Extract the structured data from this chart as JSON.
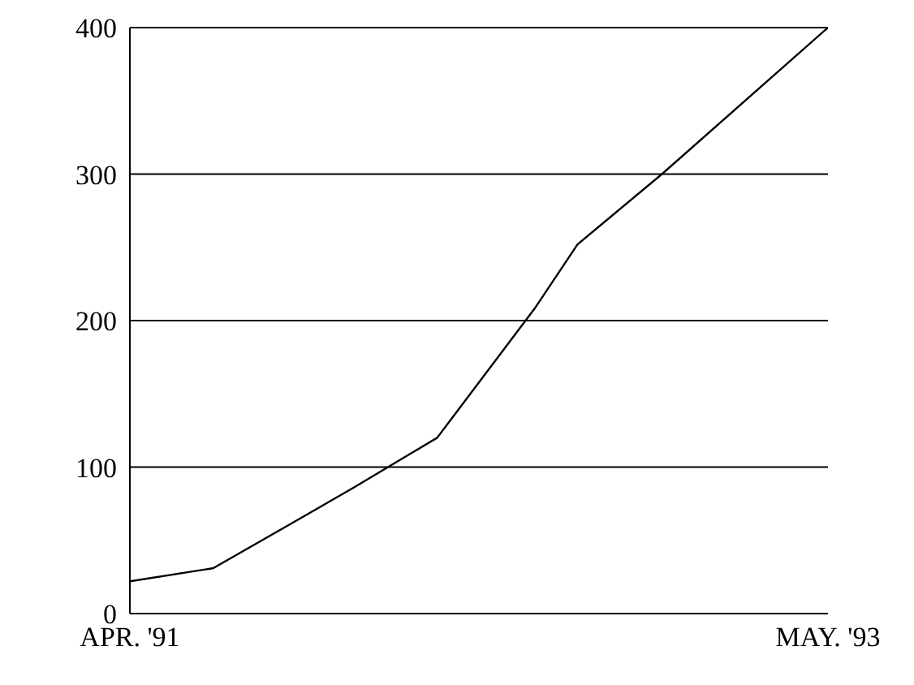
{
  "chart_data": {
    "type": "line",
    "x": [
      "1991-04",
      "1991-07",
      "1991-10",
      "1991-12",
      "1992-03",
      "1992-06-15",
      "1992-08",
      "1992-11",
      "1993-05"
    ],
    "values": [
      22,
      31,
      64,
      86,
      120,
      208,
      252,
      300,
      400
    ],
    "color": "#000000",
    "xlim": [
      "1991-04",
      "1993-05"
    ],
    "xticks": [
      {
        "value": "1991-04",
        "label": "APR. '91"
      },
      {
        "value": "1993-05",
        "label": "MAY. '93"
      }
    ],
    "ylim": [
      0,
      400
    ],
    "yticks": [
      0,
      100,
      200,
      300,
      400
    ],
    "grid": "y",
    "marker": "none",
    "line_style": "solid"
  }
}
